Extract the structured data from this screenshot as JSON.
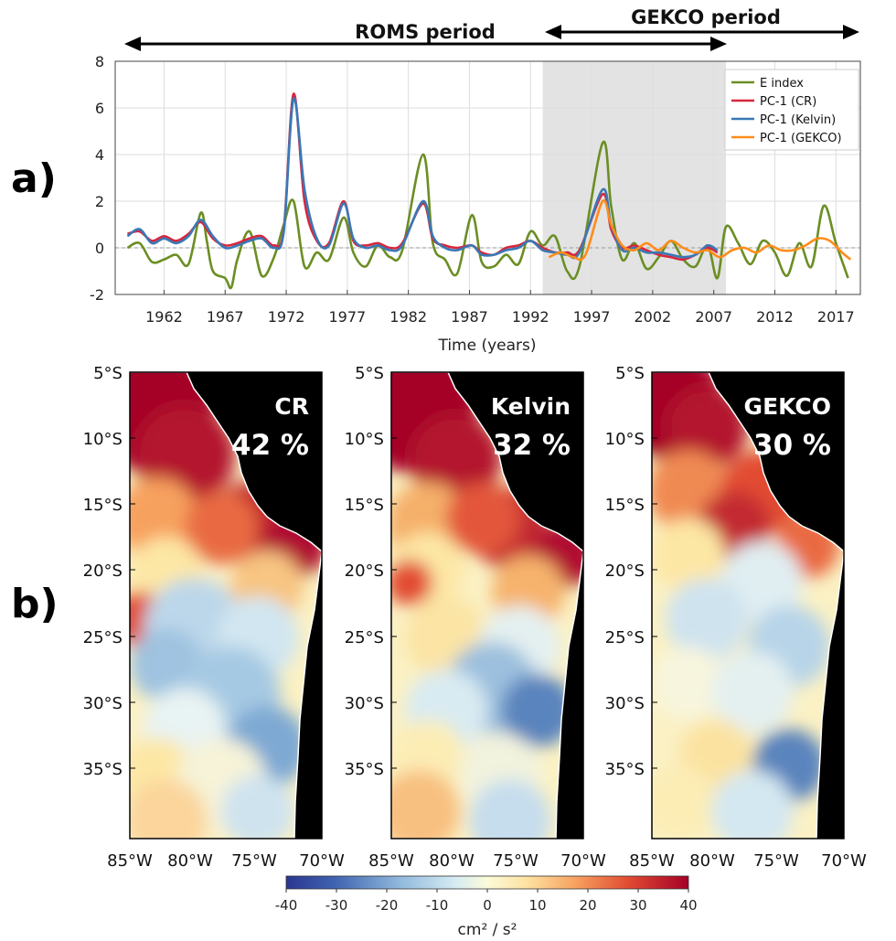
{
  "labels": {
    "panel_a": "a)",
    "panel_b": "b)"
  },
  "periods": {
    "roms": "ROMS period",
    "gekco": "GEKCO period"
  },
  "colors": {
    "e_index": "#6b8e23",
    "pc_cr": "#d7263d",
    "pc_kelvin": "#3a78b5",
    "pc_gekco": "#ff8c1a",
    "shade": "#e3e3e3"
  },
  "chart_data": [
    {
      "type": "line",
      "xlabel": "Time (years)",
      "ylabel": "",
      "xlim": [
        1958,
        2019
      ],
      "ylim": [
        -2,
        8
      ],
      "xticks": [
        1962,
        1967,
        1972,
        1977,
        1982,
        1987,
        1992,
        1997,
        2002,
        2007,
        2012,
        2017
      ],
      "yticks": [
        -2,
        0,
        2,
        4,
        6,
        8
      ],
      "grid": true,
      "legend_position": "top-right",
      "shaded_span": [
        1993,
        2008
      ],
      "roms_period": [
        1958,
        2008
      ],
      "gekco_period": [
        1993,
        2019
      ],
      "series": [
        {
          "name": "E index",
          "color_key": "e_index",
          "x": [
            1959,
            1960,
            1961,
            1962,
            1963,
            1964,
            1965,
            1965.5,
            1966,
            1967,
            1967.5,
            1968,
            1969,
            1970,
            1971,
            1971.8,
            1972.6,
            1973.5,
            1974.5,
            1975.5,
            1976.7,
            1977.5,
            1978.5,
            1979.5,
            1980.5,
            1981.5,
            1983.2,
            1984,
            1985,
            1986,
            1987.2,
            1988,
            1989,
            1990,
            1991,
            1992,
            1993,
            1994,
            1995,
            1996,
            1997.9,
            1998.6,
            1999.5,
            2000.5,
            2001.5,
            2002.5,
            2003.5,
            2004.5,
            2005.5,
            2006.5,
            2007.3,
            2008,
            2009,
            2010,
            2011,
            2012,
            2013,
            2014,
            2015,
            2016,
            2017,
            2018
          ],
          "y": [
            0,
            0.2,
            -0.6,
            -0.5,
            -0.3,
            -0.7,
            1.5,
            0.3,
            -1.0,
            -1.3,
            -1.7,
            -0.5,
            0.7,
            -1.2,
            -0.4,
            1.0,
            2.0,
            -0.8,
            -0.2,
            -0.5,
            1.3,
            -0.2,
            -0.8,
            0.1,
            -0.4,
            -0.1,
            4.0,
            0.2,
            -0.5,
            -1.1,
            1.4,
            -0.6,
            -0.8,
            -0.3,
            -0.7,
            0.7,
            0.1,
            0.5,
            -1.0,
            -0.8,
            4.5,
            1.8,
            -0.5,
            0.2,
            -0.9,
            -0.4,
            0.3,
            -0.5,
            -0.8,
            0.1,
            -1.3,
            0.9,
            0.2,
            -0.7,
            0.3,
            -0.2,
            -1.2,
            0.2,
            -0.8,
            1.8,
            0.2,
            -1.3
          ]
        },
        {
          "name": "PC-1 (CR)",
          "color_key": "pc_cr",
          "x": [
            1959,
            1960,
            1961,
            1962,
            1963,
            1964,
            1965,
            1966,
            1967,
            1968,
            1969,
            1970,
            1971,
            1971.8,
            1972.6,
            1973.5,
            1974.5,
            1975.5,
            1976.7,
            1977.5,
            1978.5,
            1979.5,
            1980.5,
            1981.5,
            1983.2,
            1984,
            1985,
            1986,
            1987.2,
            1988,
            1989,
            1990,
            1991,
            1992,
            1993,
            1994,
            1995,
            1996,
            1997.9,
            1998.6,
            1999.5,
            2000.5,
            2001.5,
            2002.5,
            2003.5,
            2004.5,
            2005.5,
            2006.5,
            2007.3
          ],
          "y": [
            0.6,
            0.7,
            0.3,
            0.5,
            0.3,
            0.6,
            1.1,
            0.4,
            0.1,
            0.2,
            0.4,
            0.5,
            0.1,
            0.8,
            6.6,
            2.0,
            0.3,
            0.2,
            2.0,
            0.3,
            0.1,
            0.2,
            0.0,
            0.2,
            1.9,
            0.4,
            0.1,
            0.0,
            0.1,
            -0.2,
            -0.3,
            0.0,
            0.1,
            0.3,
            0.0,
            -0.2,
            -0.2,
            -0.1,
            2.3,
            0.8,
            0.0,
            0.1,
            -0.1,
            -0.3,
            -0.4,
            -0.5,
            -0.3,
            0.0,
            -0.2
          ]
        },
        {
          "name": "PC-1 (Kelvin)",
          "color_key": "pc_kelvin",
          "x": [
            1959,
            1960,
            1961,
            1962,
            1963,
            1964,
            1965,
            1966,
            1967,
            1968,
            1969,
            1970,
            1971,
            1971.8,
            1972.6,
            1973.5,
            1974.5,
            1975.5,
            1976.7,
            1977.5,
            1978.5,
            1979.5,
            1980.5,
            1981.5,
            1983.2,
            1984,
            1985,
            1986,
            1987.2,
            1988,
            1989,
            1990,
            1991,
            1992,
            1993,
            1994,
            1995,
            1996,
            1997.9,
            1998.6,
            1999.5,
            2000.5,
            2001.5,
            2002.5,
            2003.5,
            2004.5,
            2005.5,
            2006.5,
            2007.3
          ],
          "y": [
            0.5,
            0.8,
            0.2,
            0.4,
            0.2,
            0.5,
            1.2,
            0.5,
            0.0,
            0.1,
            0.3,
            0.4,
            0.0,
            0.7,
            6.4,
            2.5,
            0.4,
            0.1,
            1.9,
            0.4,
            0.0,
            0.1,
            -0.1,
            0.1,
            2.0,
            0.5,
            0.0,
            -0.1,
            0.1,
            -0.3,
            -0.3,
            -0.1,
            0.0,
            0.3,
            -0.1,
            -0.2,
            -0.3,
            -0.2,
            2.5,
            1.0,
            -0.1,
            0.0,
            -0.2,
            -0.2,
            -0.3,
            -0.4,
            -0.3,
            0.1,
            -0.1
          ]
        },
        {
          "name": "PC-1 (GEKCO)",
          "color_key": "pc_gekco",
          "x": [
            1993.5,
            1994.5,
            1995.5,
            1996.5,
            1997.9,
            1998.6,
            1999.5,
            2000.5,
            2001.5,
            2002.5,
            2003.5,
            2004.5,
            2005.5,
            2006.5,
            2007.5,
            2008.5,
            2009.5,
            2010.5,
            2011.5,
            2012.5,
            2013.5,
            2014.5,
            2015.5,
            2016.5,
            2017.5,
            2018.2
          ],
          "y": [
            -0.4,
            -0.2,
            -0.4,
            -0.3,
            2.0,
            1.0,
            0.1,
            -0.1,
            0.2,
            -0.1,
            0.3,
            0.0,
            -0.2,
            -0.1,
            -0.4,
            -0.1,
            0.0,
            -0.2,
            0.1,
            -0.1,
            -0.1,
            0.1,
            0.4,
            0.3,
            -0.2,
            -0.5
          ]
        }
      ]
    },
    {
      "type": "heatmap",
      "units": "cm² / s²",
      "colorbar_range": [
        -40,
        40
      ],
      "colorbar_ticks": [
        -40,
        -30,
        -20,
        -10,
        0,
        10,
        20,
        30,
        40
      ],
      "lon_ticks": [
        "85°W",
        "80°W",
        "75°W",
        "70°W"
      ],
      "lat_ticks": [
        "5°S",
        "10°S",
        "15°S",
        "20°S",
        "25°S",
        "30°S",
        "35°S"
      ],
      "panels": [
        {
          "name": "CR",
          "variance_explained": "42 %"
        },
        {
          "name": "Kelvin",
          "variance_explained": "32 %"
        },
        {
          "name": "GEKCO",
          "variance_explained": "30 %"
        }
      ]
    }
  ]
}
